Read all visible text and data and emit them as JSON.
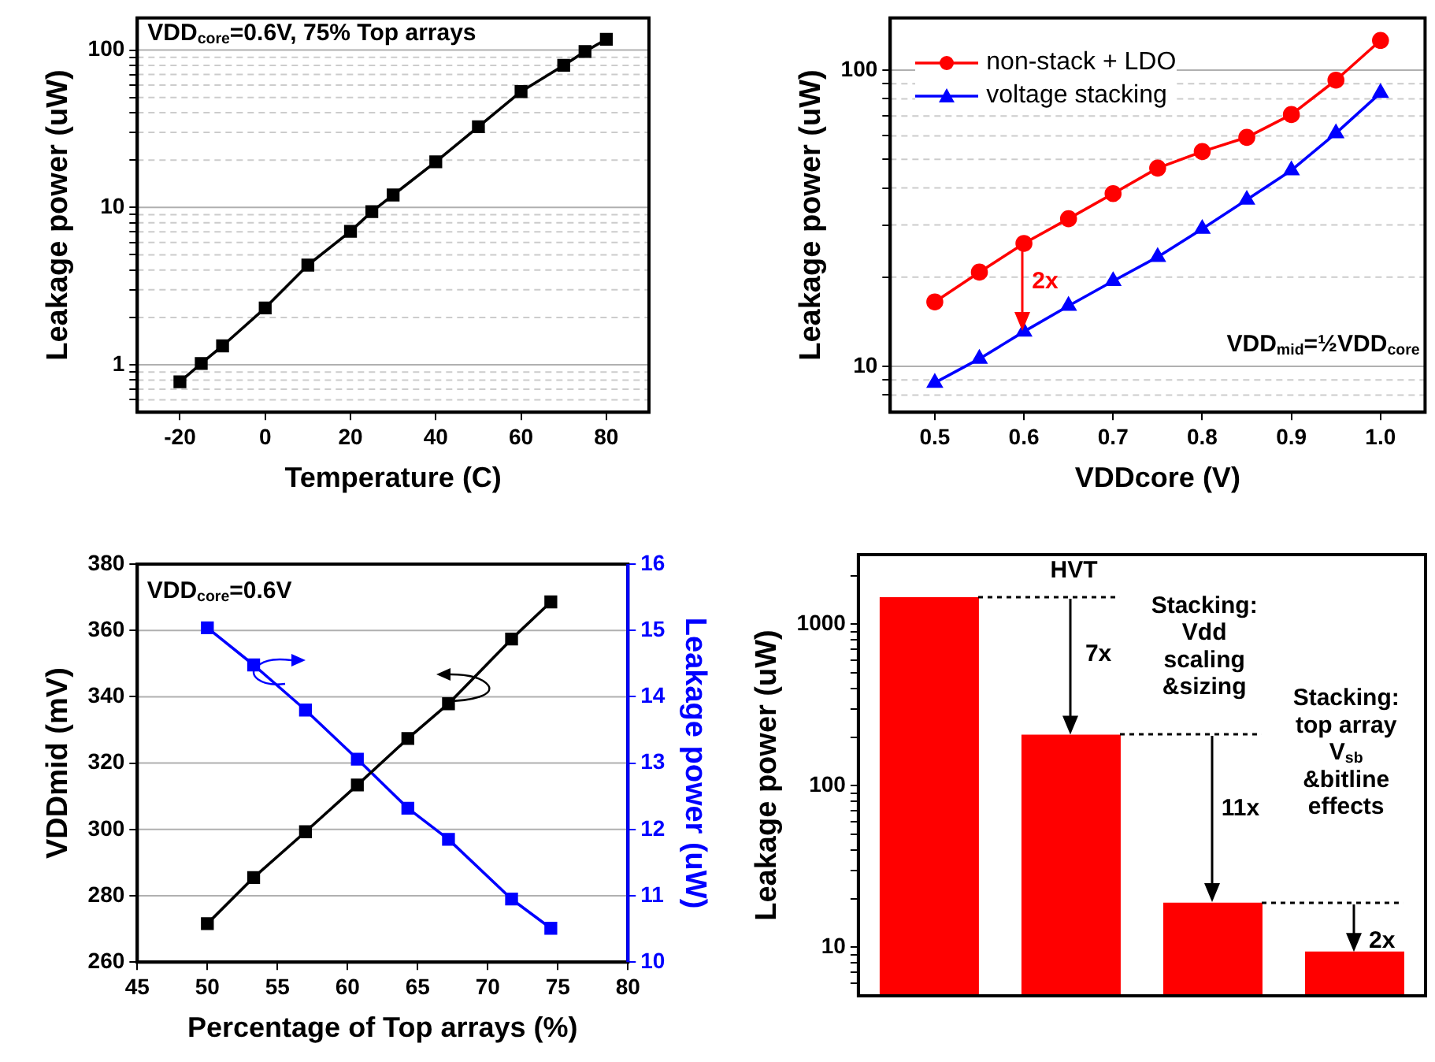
{
  "chart_data": [
    {
      "type": "line",
      "xlabel": "Temperature (C)",
      "ylabel": "Leakage power (uW)",
      "annotations": [
        "VDD$_{core}$=0.6V, 75% Top arrays"
      ],
      "x": [
        -20,
        -15,
        -10,
        0,
        10,
        20,
        25,
        30,
        40,
        50,
        60,
        70,
        75,
        80
      ],
      "series": [
        {
          "color": "#000000",
          "values": [
            0.78,
            1.02,
            1.32,
            2.3,
            4.3,
            7.05,
            9.4,
            12,
            19.5,
            32.6,
            54.5,
            80,
            98,
            117
          ]
        }
      ],
      "xlim": [
        -30,
        90
      ],
      "xticks": [
        -20,
        0,
        20,
        40,
        60,
        80
      ],
      "log": "y",
      "ylim": [
        0.5,
        160
      ],
      "yticks": [
        {
          "value": 0.6,
          "label": null
        },
        {
          "value": 0.7,
          "label": null
        },
        {
          "value": 0.8,
          "label": null
        },
        {
          "value": 0.9,
          "label": null
        },
        1,
        {
          "value": 2,
          "label": null
        },
        {
          "value": 3,
          "label": null
        },
        {
          "value": 4,
          "label": null
        },
        {
          "value": 5,
          "label": null
        },
        {
          "value": 6,
          "label": null
        },
        {
          "value": 7,
          "label": null
        },
        {
          "value": 8,
          "label": null
        },
        {
          "value": 9,
          "label": null
        },
        10,
        {
          "value": 20,
          "label": null
        },
        {
          "value": 30,
          "label": null
        },
        {
          "value": 40,
          "label": null
        },
        {
          "value": 50,
          "label": null
        },
        {
          "value": 60,
          "label": null
        },
        {
          "value": 70,
          "label": null
        },
        {
          "value": 80,
          "label": null
        },
        {
          "value": 90,
          "label": null
        },
        100
      ],
      "grid": "y",
      "marker": "square",
      "line_style": "solid"
    },
    {
      "type": "line",
      "xlabel": "VDDcore (V)",
      "ylabel": "Leakage power (uW)",
      "annotations": [
        "VDD$_{mid}$=½VDD$_{core}$",
        "2x"
      ],
      "x": [
        0.5,
        0.55,
        0.6,
        0.65,
        0.7,
        0.75,
        0.8,
        0.85,
        0.9,
        0.95,
        1.0
      ],
      "series": [
        {
          "name": "non-stack + LDO",
          "color": "#ff0000",
          "marker": "circle",
          "values": [
            16.5,
            20.8,
            26.0,
            31.5,
            38.3,
            46.7,
            53.1,
            59.3,
            70.8,
            92.5,
            126
          ]
        },
        {
          "name": "voltage stacking",
          "color": "#0000ff",
          "marker": "triangle",
          "values": [
            8.8,
            10.6,
            13.1,
            16.0,
            19.4,
            23.4,
            29.1,
            36.5,
            45.9,
            61.2,
            83.8
          ]
        }
      ],
      "xlim": [
        0.45,
        1.05
      ],
      "xticks": [
        0.5,
        0.6,
        0.7,
        0.8,
        0.9,
        {
          "value": 1,
          "label": "1.0"
        }
      ],
      "log": "y",
      "ylim": [
        7,
        150
      ],
      "yticks": [
        {
          "value": 8,
          "label": null
        },
        {
          "value": 9,
          "label": null
        },
        10,
        {
          "value": 20,
          "label": null
        },
        {
          "value": 30,
          "label": null
        },
        {
          "value": 40,
          "label": null
        },
        {
          "value": 50,
          "label": null
        },
        {
          "value": 60,
          "label": null
        },
        {
          "value": 70,
          "label": null
        },
        {
          "value": 80,
          "label": null
        },
        {
          "value": 90,
          "label": null
        },
        100
      ],
      "grid": "y",
      "legend": "top left",
      "line_style": "solid"
    },
    {
      "type": "line",
      "xlabel": "Percentage of Top arrays (%)",
      "ylabel": "VDDmid (mV)",
      "y2label": "Leakage power (uW)",
      "annotations": [
        "VDD$_{core}$=0.6V"
      ],
      "x": [
        50,
        53.3,
        57,
        60.7,
        64.3,
        67.2,
        71.7,
        74.5
      ],
      "series": [
        {
          "color": "#000000",
          "values": [
            271.6,
            285.5,
            299.3,
            313.4,
            327.4,
            337.9,
            357.4,
            368.6
          ]
        },
        {
          "color": "#0000ff",
          "axis": "y2",
          "values": [
            15.04,
            14.48,
            13.8,
            13.06,
            12.32,
            11.85,
            10.95,
            10.51
          ]
        }
      ],
      "xlim": [
        45,
        80
      ],
      "xticks": [
        45,
        50,
        55,
        60,
        65,
        70,
        75,
        80
      ],
      "ylim": [
        260,
        380
      ],
      "yticks": [
        260,
        280,
        300,
        320,
        340,
        360,
        380
      ],
      "y2lim": [
        10,
        16
      ],
      "y2ticks": [
        10,
        11,
        12,
        13,
        14,
        15,
        16
      ],
      "grid": "y",
      "marker": "square",
      "line_style": "solid"
    },
    {
      "type": "bar",
      "ylabel": "Leakage power (uW)",
      "categories": [
        null,
        null,
        null,
        null
      ],
      "values": [
        1470,
        207,
        18.9,
        9.4
      ],
      "color": "#ff0000",
      "log": "y",
      "ylim": [
        5,
        2700
      ],
      "yticks": [
        {
          "value": 6,
          "label": null
        },
        {
          "value": 7,
          "label": null
        },
        {
          "value": 8,
          "label": null
        },
        {
          "value": 9,
          "label": null
        },
        10,
        {
          "value": 20,
          "label": null
        },
        {
          "value": 30,
          "label": null
        },
        {
          "value": 40,
          "label": null
        },
        {
          "value": 50,
          "label": null
        },
        {
          "value": 60,
          "label": null
        },
        {
          "value": 70,
          "label": null
        },
        {
          "value": 80,
          "label": null
        },
        {
          "value": 90,
          "label": null
        },
        100,
        {
          "value": 200,
          "label": null
        },
        {
          "value": 300,
          "label": null
        },
        {
          "value": 400,
          "label": null
        },
        {
          "value": 500,
          "label": null
        },
        {
          "value": 600,
          "label": null
        },
        {
          "value": 700,
          "label": null
        },
        {
          "value": 800,
          "label": null
        },
        {
          "value": 900,
          "label": null
        },
        1000,
        {
          "value": 2000,
          "label": null
        }
      ],
      "tick_labels": "y",
      "annotations": [
        "HVT",
        "7x",
        "Stacking:\nVdd\nscaling\n&sizing",
        "11x",
        "Stacking:\ntop array\nV$_{sb}$\n&bitline\neffects",
        "2x"
      ]
    }
  ]
}
